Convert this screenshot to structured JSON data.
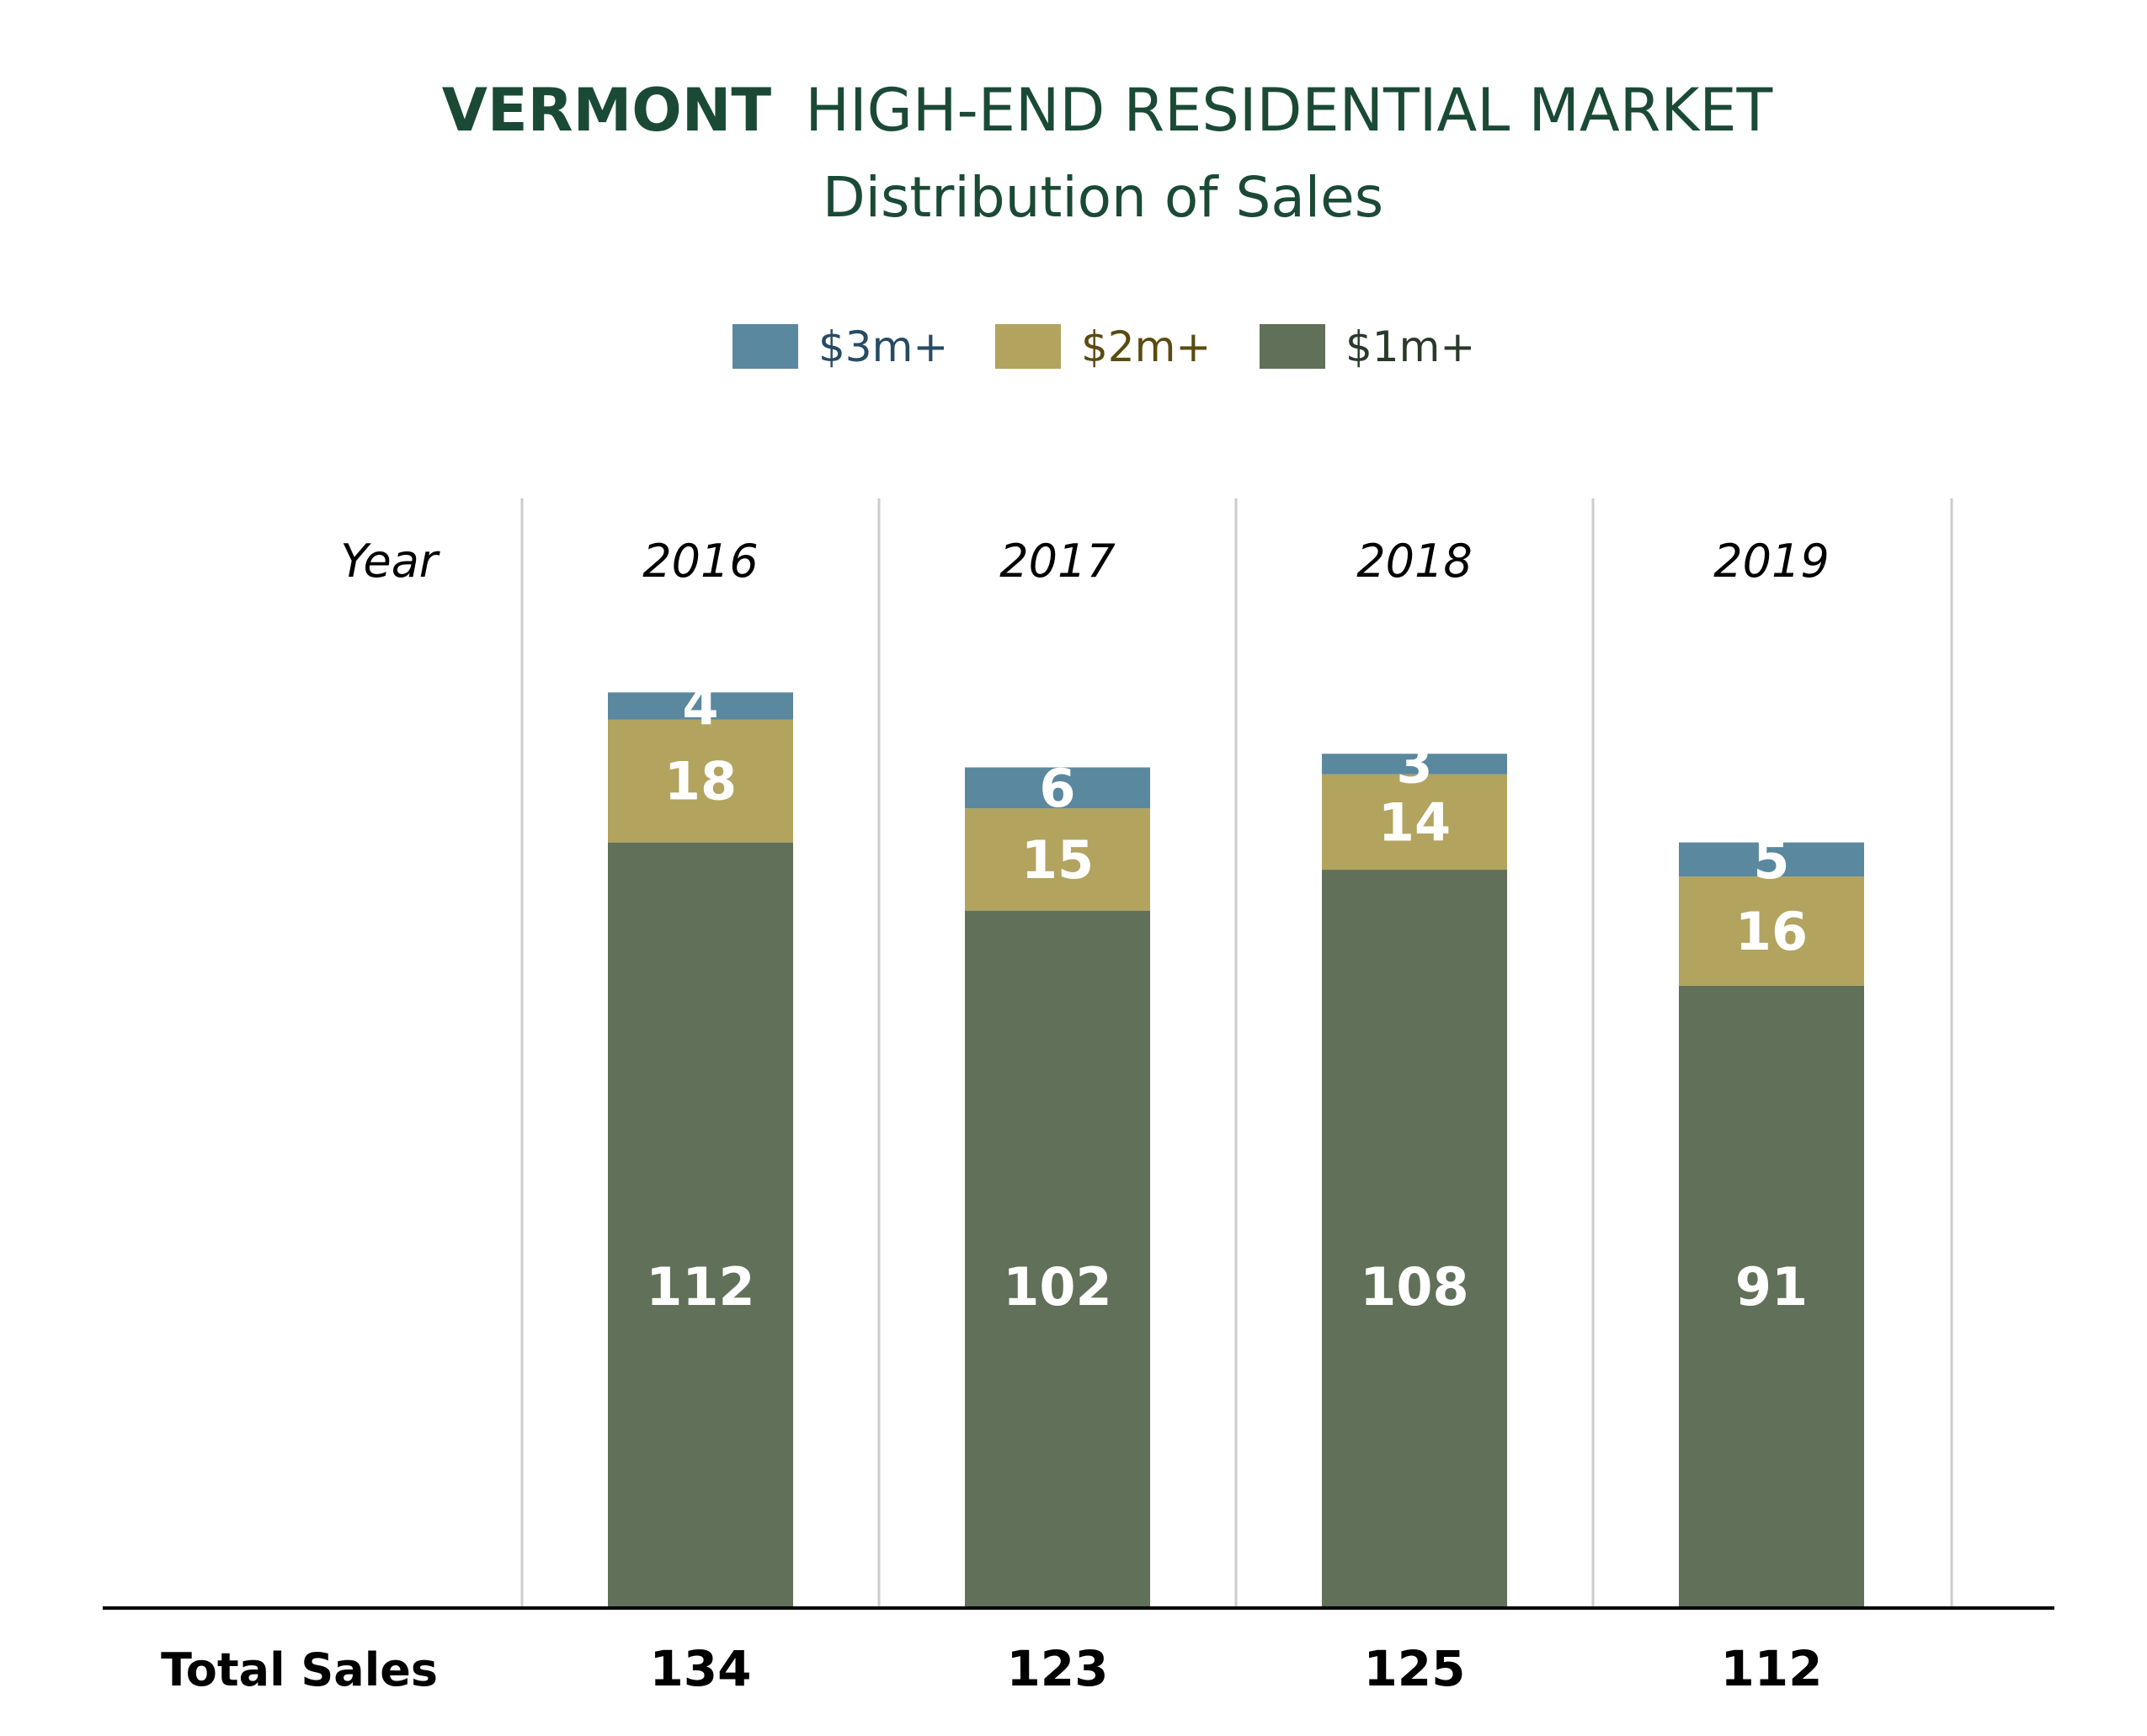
{
  "title": {
    "bold": "VERMONT",
    "rest": "HIGH-END RESIDENTIAL MARKET"
  },
  "subtitle": "Distribution of Sales",
  "colors": {
    "title": "#1a4a35",
    "s3m": "#5a889f",
    "s2m": "#b2a35f",
    "s1m": "#617058",
    "grid": "#cccccc",
    "baseline": "#000000",
    "text": "#000000",
    "bar_label": "#ffffff",
    "legend_3m_text": "#274b63",
    "legend_2m_text": "#5a4b10",
    "legend_1m_text": "#2a3a2a"
  },
  "chart_data": {
    "type": "bar",
    "stacked": true,
    "column_header_label": "Year",
    "total_row_label": "Total Sales",
    "categories": [
      "2016",
      "2017",
      "2018",
      "2019"
    ],
    "series": [
      {
        "name": "$1m+",
        "values": [
          112,
          102,
          108,
          91
        ]
      },
      {
        "name": "$2m+",
        "values": [
          18,
          15,
          14,
          16
        ]
      },
      {
        "name": "$3m+",
        "values": [
          4,
          6,
          3,
          5
        ]
      }
    ],
    "totals": [
      134,
      123,
      125,
      112
    ],
    "legend_order": [
      "$3m+",
      "$2m+",
      "$1m+"
    ],
    "legend_position": "top-center",
    "grid": "vertical-separators",
    "ylim": [
      0,
      138
    ]
  }
}
